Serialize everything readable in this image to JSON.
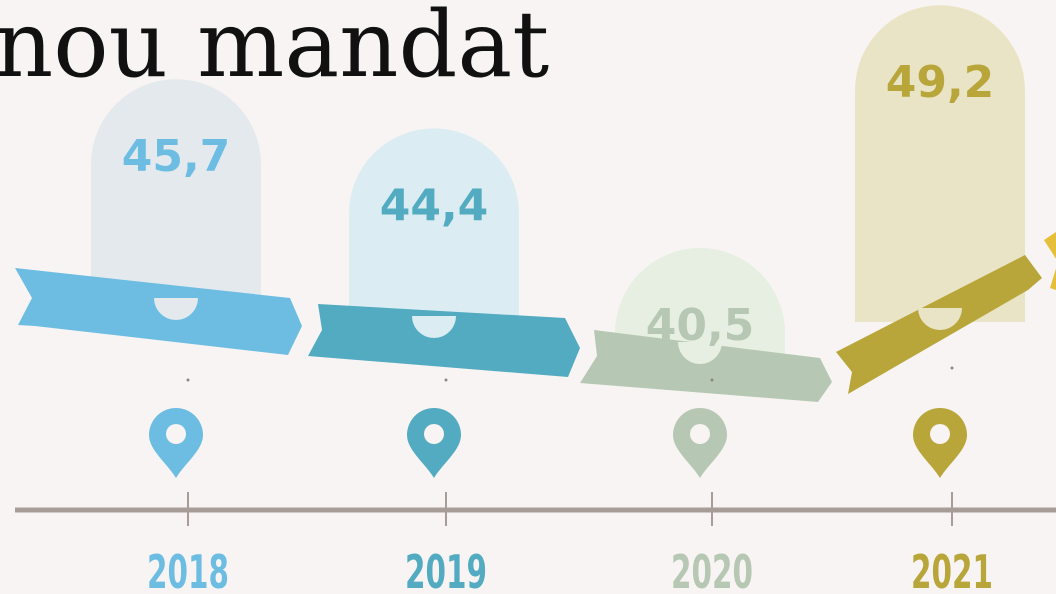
{
  "chart_data": {
    "type": "bar",
    "title": "nou mandat",
    "categories": [
      "2018",
      "2019",
      "2020",
      "2021"
    ],
    "values": [
      45.7,
      44.4,
      40.5,
      49.2
    ],
    "value_labels": [
      "45,7",
      "44,4",
      "40,5",
      "49,2"
    ],
    "colors": [
      "#6dbde3",
      "#52abc0",
      "#b6c8b3",
      "#b8a63a"
    ],
    "fill_colors": [
      "#e3e9ed",
      "#dbedf2",
      "#e6efe2",
      "#eae4c6"
    ]
  }
}
